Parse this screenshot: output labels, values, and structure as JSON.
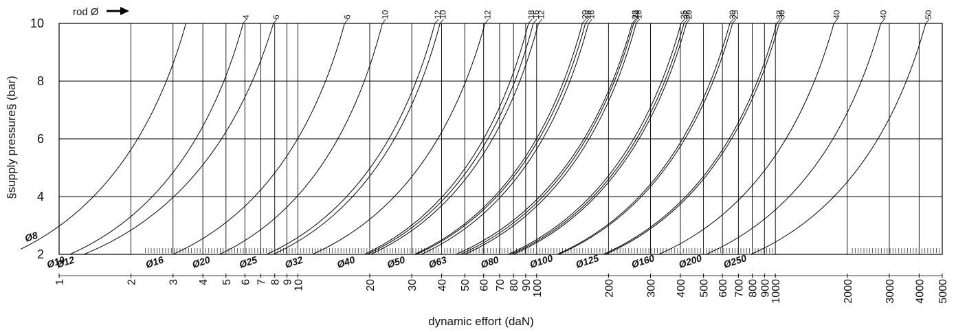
{
  "chart_data": {
    "type": "line",
    "x_scale": "log",
    "xlabel": "dynamic effort (daN)",
    "ylabel": "§supply pressure§ (bar)",
    "xlim": [
      1,
      5000
    ],
    "ylim": [
      2,
      10
    ],
    "y_ticks": [
      "2",
      "4",
      "6",
      "8",
      "10"
    ],
    "x_ticks": [
      {
        "v": 1,
        "label": "1"
      },
      {
        "v": 2,
        "label": "2"
      },
      {
        "v": 3,
        "label": "3"
      },
      {
        "v": 4,
        "label": "4"
      },
      {
        "v": 5,
        "label": "5"
      },
      {
        "v": 6,
        "label": "6"
      },
      {
        "v": 7,
        "label": "7"
      },
      {
        "v": 8,
        "label": "8"
      },
      {
        "v": 9,
        "label": "9"
      },
      {
        "v": 10,
        "label": "10"
      },
      {
        "v": 20,
        "label": "20"
      },
      {
        "v": 30,
        "label": "30"
      },
      {
        "v": 40,
        "label": "40"
      },
      {
        "v": 50,
        "label": "50"
      },
      {
        "v": 60,
        "label": "60"
      },
      {
        "v": 70,
        "label": "70"
      },
      {
        "v": 80,
        "label": "80"
      },
      {
        "v": 90,
        "label": "90"
      },
      {
        "v": 100,
        "label": "100"
      },
      {
        "v": 200,
        "label": "200"
      },
      {
        "v": 300,
        "label": "300"
      },
      {
        "v": 400,
        "label": "400"
      },
      {
        "v": 500,
        "label": "500"
      },
      {
        "v": 600,
        "label": "600"
      },
      {
        "v": 700,
        "label": "700"
      },
      {
        "v": 800,
        "label": "800"
      },
      {
        "v": 900,
        "label": "900"
      },
      {
        "v": 1000,
        "label": "1000"
      },
      {
        "v": 2000,
        "label": "2000"
      },
      {
        "v": 3000,
        "label": "3000"
      },
      {
        "v": 4000,
        "label": "4000"
      },
      {
        "v": 5000,
        "label": "5000"
      }
    ],
    "rod_header": "rod Ø",
    "grid": true,
    "series": [
      {
        "name": "Ø8",
        "x_at_2bar": 0.62,
        "x_at_10bar": 3.4
      },
      {
        "name": "Ø10",
        "x_at_2bar": 1.11,
        "x_at_10bar": 5.9,
        "rod": "4"
      },
      {
        "name": "Ø12",
        "x_at_2bar": 1.27,
        "x_at_10bar": 7.9,
        "rod": "6"
      },
      {
        "name": "Ø16",
        "x_at_2bar": 3.0,
        "x_at_10bar": 15.7,
        "rod": "6"
      },
      {
        "name": "Ø20",
        "x_at_2bar": 4.7,
        "x_at_10bar": 22.6,
        "rod": "10"
      },
      {
        "name": "Ø25",
        "x_at_2bar": 7.4,
        "x_at_10bar": 37.5,
        "rod": "12"
      },
      {
        "name": "Ø25",
        "x_at_2bar": 7.9,
        "x_at_10bar": 39.4,
        "rod": "10"
      },
      {
        "name": "Ø32",
        "x_at_2bar": 11.5,
        "x_at_10bar": 60.8,
        "rod": "12"
      },
      {
        "name": "Ø40",
        "x_at_2bar": 19.0,
        "x_at_10bar": 92.5,
        "rod": "18"
      },
      {
        "name": "Ø40",
        "x_at_2bar": 19.5,
        "x_at_10bar": 96.9,
        "rod": "16"
      },
      {
        "name": "Ø40",
        "x_at_2bar": 20.2,
        "x_at_10bar": 101.8,
        "rod": "12"
      },
      {
        "name": "Ø50",
        "x_at_2bar": 30.8,
        "x_at_10bar": 155.5,
        "rod": "20"
      },
      {
        "name": "Ø50",
        "x_at_2bar": 31.4,
        "x_at_10bar": 160.0,
        "rod": "18"
      },
      {
        "name": "Ø50",
        "x_at_2bar": 32.9,
        "x_at_10bar": 165.0,
        "rod": "16"
      },
      {
        "name": "Ø63",
        "x_at_2bar": 46.0,
        "x_at_10bar": 251.3,
        "rod": "22"
      },
      {
        "name": "Ø63",
        "x_at_2bar": 48.0,
        "x_at_10bar": 255.0,
        "rod": "20"
      },
      {
        "name": "Ø63",
        "x_at_2bar": 50.0,
        "x_at_10bar": 261.1,
        "rod": "16"
      },
      {
        "name": "Ø80",
        "x_at_2bar": 76.0,
        "x_at_10bar": 402.5,
        "rod": "25"
      },
      {
        "name": "Ø80",
        "x_at_2bar": 78.0,
        "x_at_10bar": 414.2,
        "rod": "22"
      },
      {
        "name": "Ø80",
        "x_at_2bar": 80.0,
        "x_at_10bar": 424.0,
        "rod": "20"
      },
      {
        "name": "Ø100",
        "x_at_2bar": 122.0,
        "x_at_10bar": 644.4,
        "rod": "30"
      },
      {
        "name": "Ø100",
        "x_at_2bar": 124.0,
        "x_at_10bar": 661.5,
        "rod": "25"
      },
      {
        "name": "Ø125",
        "x_at_2bar": 190.0,
        "x_at_10bar": 1012.5,
        "rod": "32"
      },
      {
        "name": "Ø125",
        "x_at_2bar": 194.0,
        "x_at_10bar": 1037.5,
        "rod": "30"
      },
      {
        "name": "Ø160",
        "x_at_2bar": 325.0,
        "x_at_10bar": 1758.1,
        "rod": "40"
      },
      {
        "name": "Ø200",
        "x_at_2bar": 513.0,
        "x_at_10bar": 2764.6,
        "rod": "40"
      },
      {
        "name": "Ø250",
        "x_at_2bar": 790.0,
        "x_at_10bar": 4266.0,
        "rod": "50"
      }
    ],
    "bore_labels": [
      "Ø8",
      "Ø10",
      "Ø12",
      "Ø16",
      "Ø20",
      "Ø25",
      "Ø32",
      "Ø40",
      "Ø50",
      "Ø63",
      "Ø80",
      "Ø100",
      "Ø125",
      "Ø160",
      "Ø200",
      "Ø250"
    ]
  }
}
